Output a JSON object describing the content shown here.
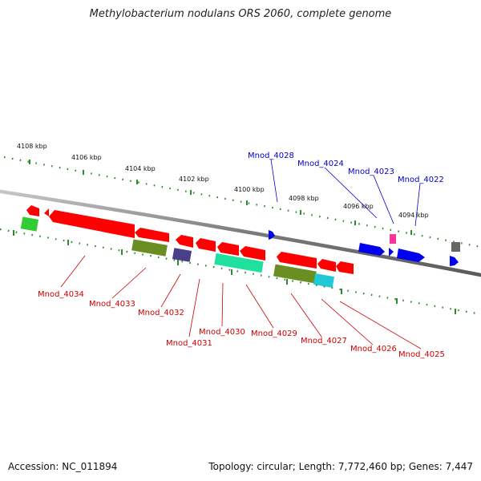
{
  "header": {
    "title": "Methylobacterium nodulans ORS 2060, complete genome"
  },
  "footer": {
    "accession": "Accession: NC_011894",
    "summary": "Topology: circular; Length: 7,772,460 bp; Genes: 7,447"
  },
  "scale_labels": [
    "4108 kbp",
    "4106 kbp",
    "4104 kbp",
    "4102 kbp",
    "4100 kbp",
    "4098 kbp",
    "4096 kbp",
    "4094 kbp"
  ],
  "gene_labels_top": [
    "Mnod_4028",
    "Mnod_4024",
    "Mnod_4023",
    "Mnod_4022"
  ],
  "gene_labels_bottom": [
    "Mnod_4034",
    "Mnod_4033",
    "Mnod_4032",
    "Mnod_4031",
    "Mnod_4030",
    "Mnod_4029",
    "Mnod_4027",
    "Mnod_4026",
    "Mnod_4025"
  ],
  "colors": {
    "backbone": "#8a8a8a",
    "tick_dots": "#2e8b2e",
    "label_forward": "#0000cc",
    "label_reverse": "#cc0000",
    "red_gene": "#ff0000",
    "blue_gene": "#0000ee",
    "olive_gene": "#6b8e23",
    "aqua_gene": "#20e0a0",
    "cyan_gene": "#20c8d8",
    "slate_gene": "#4a3f8a",
    "green_gene": "#33cc33",
    "pink_gene": "#ff3399",
    "gray_gene": "#666666"
  }
}
